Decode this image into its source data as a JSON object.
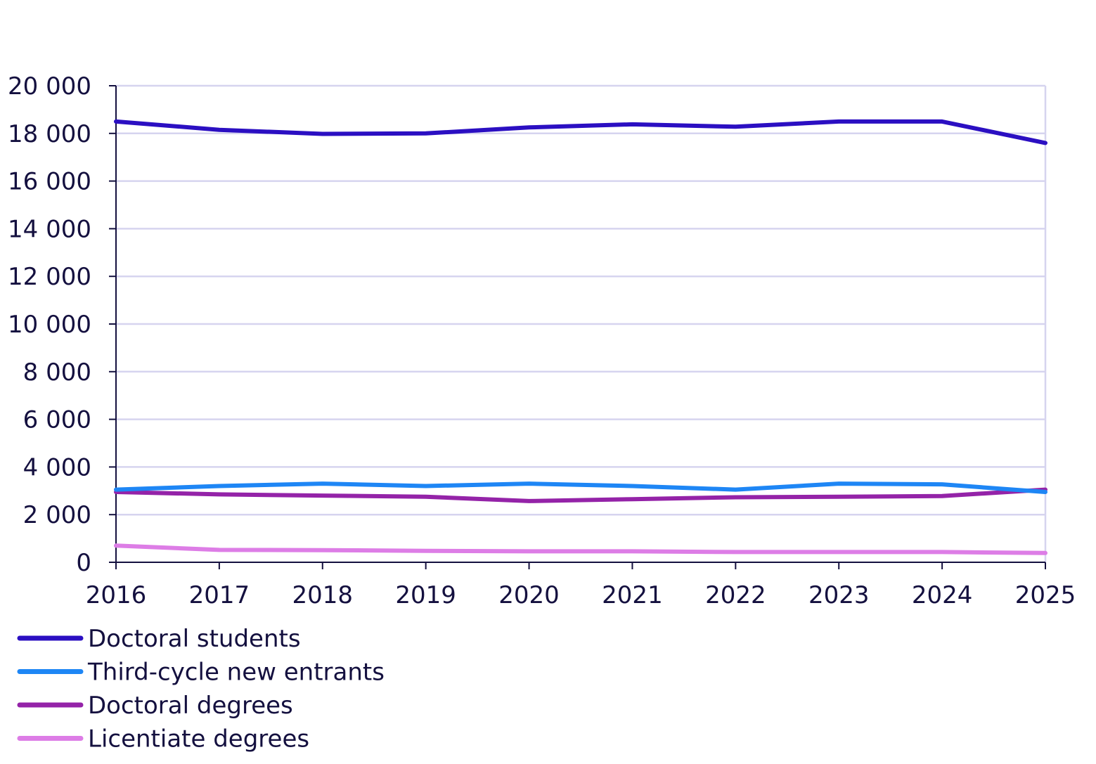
{
  "chart_data": {
    "type": "line",
    "title": "",
    "xlabel": "",
    "ylabel": "",
    "x": [
      "2016",
      "2017",
      "2018",
      "2019",
      "2020",
      "2021",
      "2022",
      "2023",
      "2024",
      "2025"
    ],
    "ylim": [
      0,
      20000
    ],
    "y_ticks": [
      0,
      2000,
      4000,
      6000,
      8000,
      10000,
      12000,
      14000,
      16000,
      18000,
      20000
    ],
    "y_tick_labels": [
      "0",
      "2 000",
      "4 000",
      "6 000",
      "8 000",
      "10 000",
      "12 000",
      "14 000",
      "16 000",
      "18 000",
      "20 000"
    ],
    "grid": true,
    "legend_position": "bottom-left",
    "series": [
      {
        "name": "Doctoral students",
        "color": "#2b0fc2",
        "values": [
          18500,
          18150,
          17980,
          18000,
          18250,
          18380,
          18280,
          18500,
          18500,
          17600
        ]
      },
      {
        "name": "Third-cycle new entrants",
        "color": "#1e86f5",
        "values": [
          3050,
          3200,
          3300,
          3200,
          3300,
          3200,
          3050,
          3300,
          3270,
          2950
        ]
      },
      {
        "name": "Doctoral degrees",
        "color": "#9423a8",
        "values": [
          2950,
          2850,
          2800,
          2750,
          2570,
          2650,
          2730,
          2750,
          2780,
          3050
        ]
      },
      {
        "name": "Licentiate degrees",
        "color": "#dd7de6",
        "values": [
          700,
          520,
          510,
          480,
          460,
          460,
          430,
          430,
          430,
          390
        ]
      }
    ]
  }
}
